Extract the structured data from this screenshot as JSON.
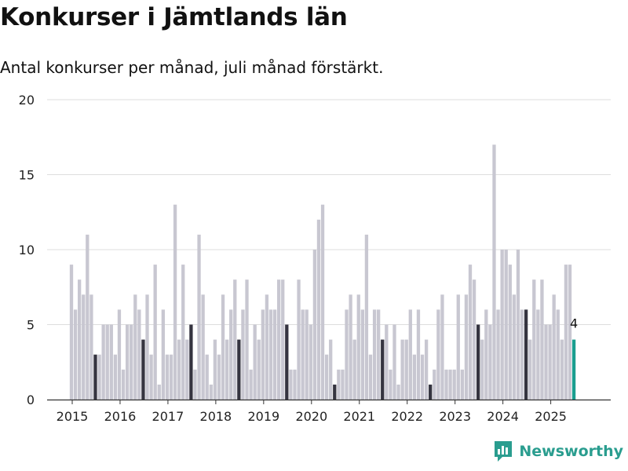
{
  "header": {
    "title": "Konkurser i Jämtlands län",
    "subtitle": "Antal konkurser per månad, juli månad förstärkt."
  },
  "brand": {
    "name": "Newsworthy",
    "color": "#2a9d8f",
    "icon": "bar-chart-icon"
  },
  "colors": {
    "bar": "#c8c7d1",
    "highlight": "#353440",
    "latest": "#1a9e8f",
    "grid": "#dddddd"
  },
  "chart_data": {
    "type": "bar",
    "title": "Konkurser i Jämtlands län",
    "subtitle": "Antal konkurser per månad, juli månad förstärkt.",
    "xlabel": "",
    "ylabel": "",
    "ylim": [
      0,
      20
    ],
    "yticks": [
      0,
      5,
      10,
      15,
      20
    ],
    "xticks": [
      "2015",
      "2016",
      "2017",
      "2018",
      "2019",
      "2020",
      "2021",
      "2022",
      "2023",
      "2024",
      "2025"
    ],
    "grid": true,
    "start": "2015-01",
    "end": "2025-07",
    "highlight_month": "juli",
    "series": [
      {
        "year": "2015",
        "values": [
          9,
          6,
          8,
          7,
          11,
          7,
          3,
          3,
          5,
          5,
          5,
          3
        ]
      },
      {
        "year": "2016",
        "values": [
          6,
          2,
          5,
          5,
          7,
          6,
          4,
          7,
          3,
          9,
          1,
          6
        ]
      },
      {
        "year": "2017",
        "values": [
          3,
          3,
          13,
          4,
          9,
          4,
          5,
          2,
          11,
          7,
          3,
          1
        ]
      },
      {
        "year": "2018",
        "values": [
          4,
          3,
          7,
          4,
          6,
          8,
          4,
          6,
          8,
          2,
          5,
          4
        ]
      },
      {
        "year": "2019",
        "values": [
          6,
          7,
          6,
          6,
          8,
          8,
          5,
          2,
          2,
          8,
          6,
          6
        ]
      },
      {
        "year": "2020",
        "values": [
          5,
          10,
          12,
          13,
          3,
          4,
          1,
          2,
          2,
          6,
          7,
          4
        ]
      },
      {
        "year": "2021",
        "values": [
          7,
          6,
          11,
          3,
          6,
          6,
          4,
          5,
          2,
          5,
          1,
          4
        ]
      },
      {
        "year": "2022",
        "values": [
          4,
          6,
          3,
          6,
          3,
          4,
          1,
          2,
          6,
          7,
          2,
          2
        ]
      },
      {
        "year": "2023",
        "values": [
          2,
          7,
          2,
          7,
          9,
          8,
          5,
          4,
          6,
          5,
          17,
          6
        ]
      },
      {
        "year": "2024",
        "values": [
          10,
          10,
          9,
          7,
          10,
          6,
          6,
          4,
          8,
          6,
          8,
          5
        ]
      },
      {
        "year": "2025",
        "values": [
          5,
          7,
          6,
          4,
          9,
          9,
          4
        ]
      }
    ],
    "annotations": [
      {
        "period": "2025-07",
        "label": "4"
      }
    ]
  }
}
